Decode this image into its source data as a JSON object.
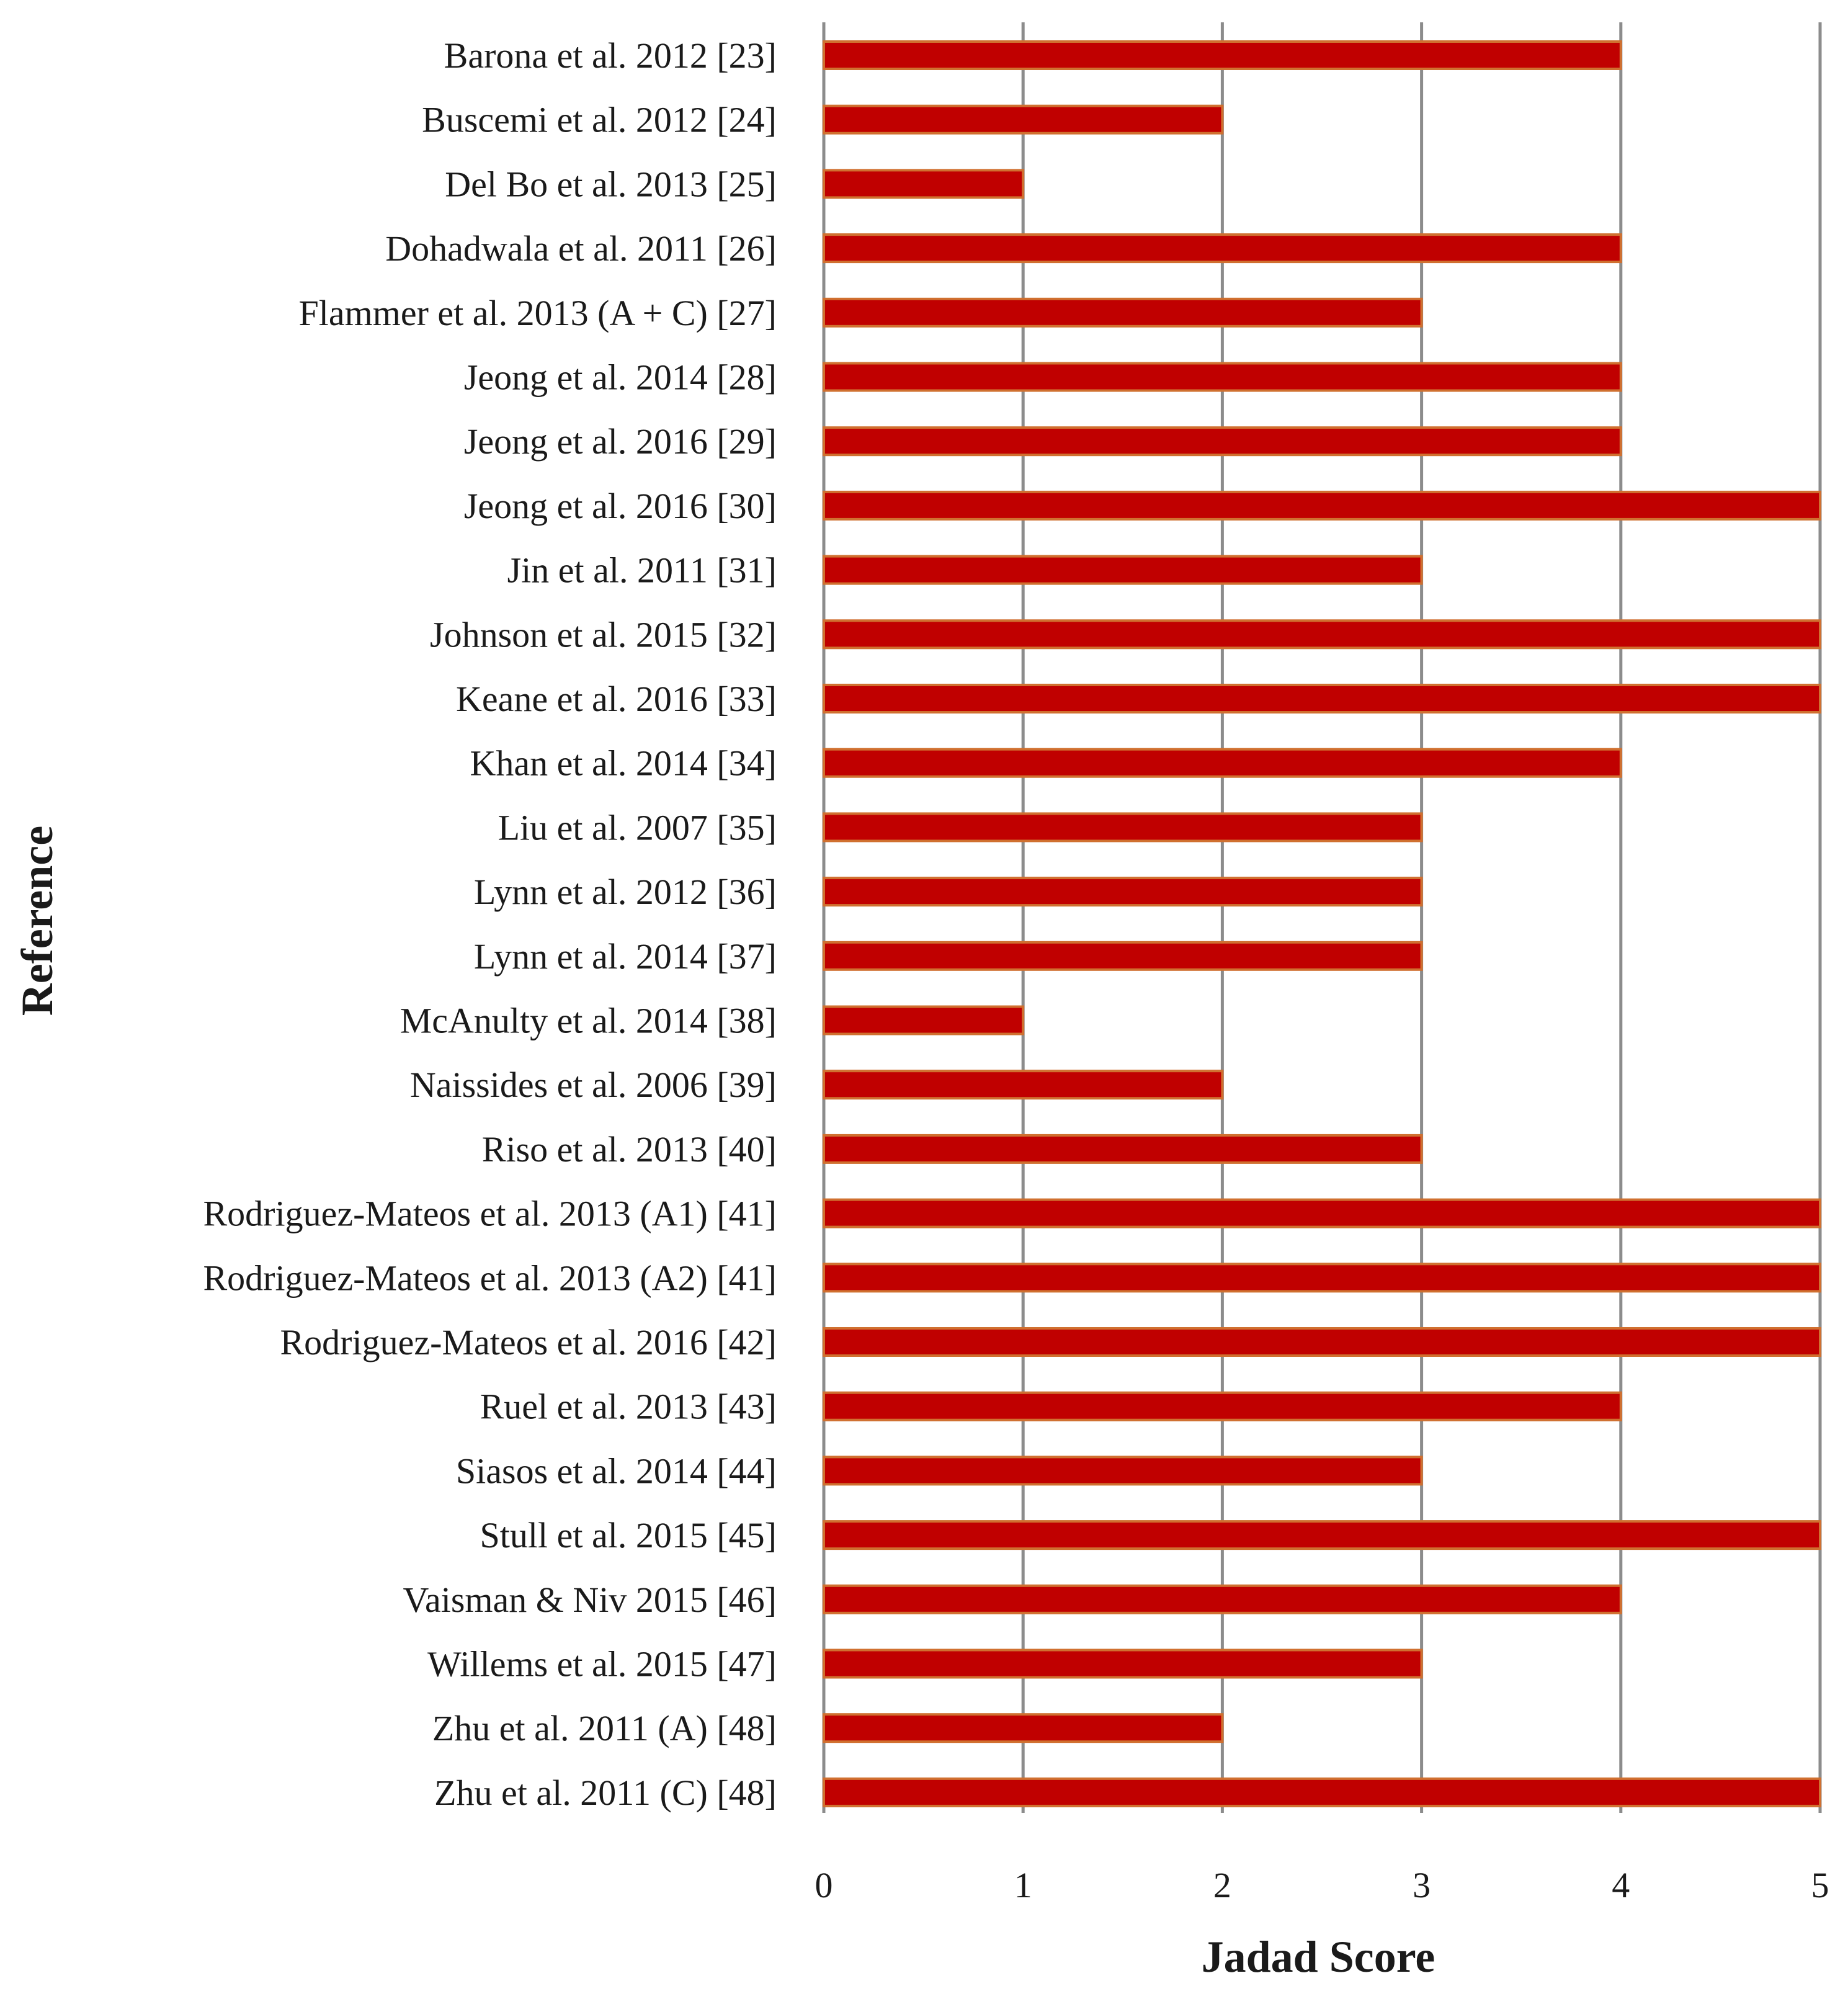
{
  "chart_data": {
    "type": "bar",
    "orientation": "horizontal",
    "xlabel": "Jadad Score",
    "ylabel": "Reference",
    "xlim": [
      0,
      5
    ],
    "xticks": [
      0,
      1,
      2,
      3,
      4,
      5
    ],
    "grid": "vertical",
    "legend": "none",
    "bar_color": "#c00000",
    "bar_edge_color": "#d07030",
    "grid_color": "#8c8c8c",
    "categories": [
      "Barona et al. 2012 [23]",
      "Buscemi et al. 2012 [24]",
      "Del Bo et al. 2013 [25]",
      "Dohadwala et al. 2011 [26]",
      "Flammer et al. 2013 (A + C) [27]",
      "Jeong et al. 2014 [28]",
      "Jeong et al. 2016 [29]",
      "Jeong et al. 2016 [30]",
      "Jin et al. 2011 [31]",
      "Johnson et al. 2015 [32]",
      "Keane et al. 2016 [33]",
      "Khan et al. 2014 [34]",
      "Liu et al. 2007 [35]",
      "Lynn et al. 2012 [36]",
      "Lynn et al. 2014 [37]",
      "McAnulty et al. 2014 [38]",
      "Naissides et al. 2006 [39]",
      "Riso et al. 2013 [40]",
      "Rodriguez-Mateos et al. 2013 (A1) [41]",
      "Rodriguez-Mateos et al. 2013 (A2) [41]",
      "Rodriguez-Mateos et al. 2016 [42]",
      "Ruel et al. 2013 [43]",
      "Siasos et al. 2014 [44]",
      "Stull et al. 2015 [45]",
      "Vaisman & Niv 2015 [46]",
      "Willems et al. 2015 [47]",
      "Zhu et al. 2011 (A) [48]",
      "Zhu et al. 2011 (C) [48]"
    ],
    "values": [
      4,
      2,
      1,
      4,
      3,
      4,
      4,
      5,
      3,
      5,
      5,
      4,
      3,
      3,
      3,
      1,
      2,
      3,
      5,
      5,
      5,
      4,
      3,
      5,
      4,
      3,
      2,
      5
    ]
  }
}
